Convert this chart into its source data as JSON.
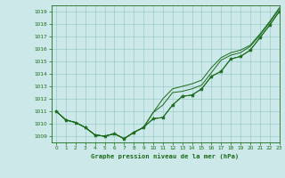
{
  "title": "Graphe pression niveau de la mer (hPa)",
  "background_color": "#cce8e8",
  "grid_color": "#99cccc",
  "line_color": "#1a6b1a",
  "xlim": [
    -0.5,
    23
  ],
  "ylim": [
    1008.5,
    1019.5
  ],
  "yticks": [
    1009,
    1010,
    1011,
    1012,
    1013,
    1014,
    1015,
    1016,
    1017,
    1018,
    1019
  ],
  "xticks": [
    0,
    1,
    2,
    3,
    4,
    5,
    6,
    7,
    8,
    9,
    10,
    11,
    12,
    13,
    14,
    15,
    16,
    17,
    18,
    19,
    20,
    21,
    22,
    23
  ],
  "series1": [
    1011.0,
    1010.3,
    1010.1,
    1009.7,
    1009.1,
    1009.0,
    1009.2,
    1008.8,
    1009.3,
    1009.7,
    1010.9,
    1011.5,
    1012.5,
    1012.6,
    1012.8,
    1013.1,
    1014.1,
    1015.1,
    1015.5,
    1015.7,
    1016.2,
    1017.1,
    1018.1,
    1019.2
  ],
  "series2": [
    1011.0,
    1010.3,
    1010.1,
    1009.7,
    1009.1,
    1009.0,
    1009.2,
    1008.8,
    1009.3,
    1009.7,
    1010.4,
    1010.5,
    1011.5,
    1012.2,
    1012.3,
    1012.8,
    1013.8,
    1014.2,
    1015.2,
    1015.4,
    1015.9,
    1016.9,
    1017.9,
    1019.0
  ],
  "series3": [
    1011.0,
    1010.3,
    1010.1,
    1009.7,
    1009.1,
    1009.0,
    1009.2,
    1008.8,
    1009.3,
    1009.7,
    1010.9,
    1012.0,
    1012.8,
    1013.0,
    1013.2,
    1013.5,
    1014.5,
    1015.3,
    1015.7,
    1015.9,
    1016.3,
    1017.2,
    1018.2,
    1019.3
  ],
  "markers_x": [
    0,
    1,
    2,
    3,
    4,
    5,
    6,
    7,
    8,
    9,
    10,
    11,
    12,
    13,
    14,
    15,
    16,
    17,
    18,
    19,
    20,
    21,
    22,
    23
  ],
  "markers_y": [
    1011.0,
    1010.3,
    1010.1,
    1009.7,
    1009.1,
    1009.0,
    1009.2,
    1008.8,
    1009.3,
    1009.7,
    1010.4,
    1010.5,
    1011.5,
    1012.2,
    1012.3,
    1012.8,
    1013.8,
    1014.2,
    1015.2,
    1015.4,
    1015.9,
    1016.9,
    1017.9,
    1019.0
  ]
}
